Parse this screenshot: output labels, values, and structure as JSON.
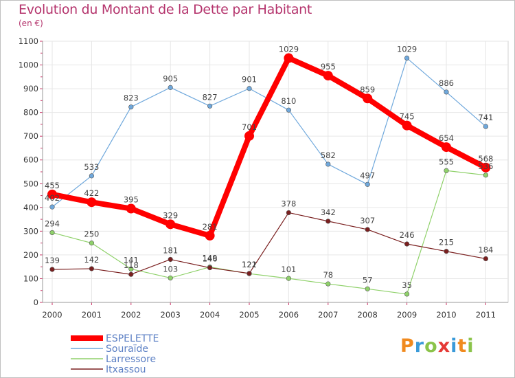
{
  "title": "Evolution du Montant de la Dette par Habitant",
  "subtitle": "(en €)",
  "logo": {
    "letters": [
      "P",
      "r",
      "o",
      "x",
      "i",
      "t",
      "i"
    ],
    "colors": [
      "#f08a1e",
      "#3a9ad9",
      "#8bc34a",
      "#e53935",
      "#3a9ad9",
      "#f08a1e",
      "#8bc34a"
    ]
  },
  "chart_data": {
    "type": "line",
    "x": [
      "2000",
      "2001",
      "2002",
      "2003",
      "2004",
      "2005",
      "2006",
      "2007",
      "2008",
      "2009",
      "2010",
      "2011"
    ],
    "ylim": [
      0,
      1100
    ],
    "yticks": [
      0,
      100,
      200,
      300,
      400,
      500,
      600,
      700,
      800,
      900,
      1000,
      1100
    ],
    "grid": true,
    "legend": "bottom-left",
    "series": [
      {
        "name": "ESPELETTE",
        "color": "#ff0000",
        "values": [
          455,
          422,
          395,
          329,
          281,
          701,
          1029,
          955,
          859,
          745,
          654,
          568
        ],
        "labels": [
          "455",
          "422",
          "395",
          "329",
          "281",
          "701",
          "1029",
          "955",
          "859",
          "745",
          "654",
          "568"
        ]
      },
      {
        "name": "Souraïde",
        "color": "#6fa8dc",
        "values": [
          402,
          533,
          823,
          905,
          827,
          901,
          810,
          582,
          497,
          1029,
          886,
          741
        ],
        "labels": [
          "402",
          "533",
          "823",
          "905",
          "827",
          "901",
          "810",
          "582",
          "497",
          "1029",
          "886",
          "741"
        ]
      },
      {
        "name": "Larressore",
        "color": "#8fd16a",
        "values": [
          294,
          250,
          141,
          103,
          149,
          121,
          101,
          78,
          57,
          35,
          555,
          536
        ],
        "labels": [
          "294",
          "250",
          "141",
          "103",
          "149",
          "121",
          "101",
          "78",
          "57",
          "35",
          "555",
          "536"
        ]
      },
      {
        "name": "Itxassou",
        "color": "#7a1f1f",
        "values": [
          139,
          142,
          118,
          181,
          146,
          122,
          378,
          342,
          307,
          246,
          215,
          184
        ],
        "labels": [
          "139",
          "142",
          "118",
          "181",
          "146",
          "122",
          "378",
          "342",
          "307",
          "246",
          "215",
          "184"
        ]
      }
    ]
  }
}
